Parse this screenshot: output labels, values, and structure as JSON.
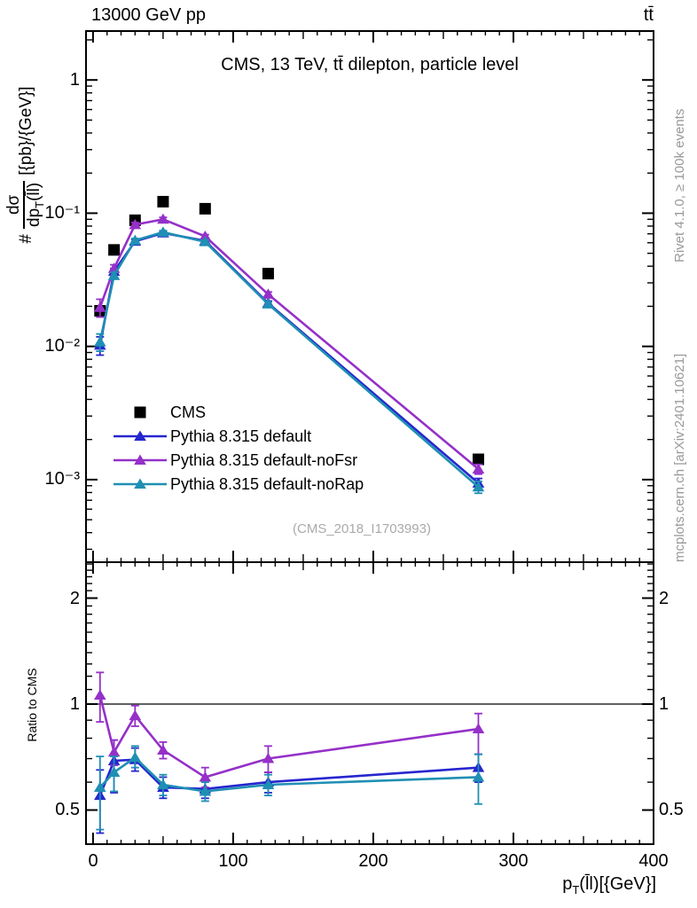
{
  "header": {
    "beam_label": "13000 GeV pp",
    "process_label": "tt̄"
  },
  "plot": {
    "title": "CMS, 13 TeV, tt̄ dilepton, particle level",
    "watermark": "(CMS_2018_I1703993)",
    "right_note_top": "Rivet 4.1.0, ≥ 100k events",
    "right_note_bottom": "mcplots.cern.ch [arXiv:2401.10621]"
  },
  "axes": {
    "x": {
      "tick_labels": [
        "0",
        "100",
        "200",
        "300",
        "400"
      ],
      "title_pre": "p",
      "title_sub": "T",
      "title_rest": "(l̄l)[{GeV}]"
    },
    "main_y": {
      "tick_labels": [
        "1",
        "10⁻¹",
        "10⁻²",
        "10⁻³"
      ],
      "title_prefix": "#",
      "title_frac_num": "dσ",
      "title_frac_den_pre": "dp",
      "title_frac_den_sub": "T",
      "title_frac_den_rest": "(l̄l)",
      "title_unit": "[{pb}/{GeV}]"
    },
    "ratio_y": {
      "title": "Ratio to CMS",
      "tick_labels": [
        "2",
        "1",
        "0.5"
      ]
    }
  },
  "chart_data": {
    "type": "line",
    "title": "CMS, 13 TeV, tt̄ dilepton, particle level",
    "xlabel": "p_T(ll̄) [GeV]",
    "ylabel_main": "# dσ/dp_T(ll̄) [pb/GeV]",
    "ylabel_ratio": "Ratio to CMS",
    "x_points": [
      5,
      15,
      30,
      50,
      80,
      125,
      275
    ],
    "x_axis": {
      "min": -5,
      "max": 400,
      "major_tick_step": 100,
      "mid_tick_step": 50,
      "minor_tick_step": 10
    },
    "main_y_axis": {
      "scale": "log",
      "min": 0.00024,
      "max": 2.33,
      "labeled_ticks": [
        1,
        0.1,
        0.01,
        0.001
      ]
    },
    "ratio_y_axis": {
      "scale": "log",
      "min": 0.4,
      "max": 2.53,
      "labeled_ticks": [
        2,
        1,
        0.5
      ],
      "reference_line": 1
    },
    "series": [
      {
        "name": "CMS",
        "color": "#000000",
        "marker": "square",
        "has_line": false,
        "values": [
          0.0185,
          0.053,
          0.0885,
          0.122,
          0.108,
          0.0352,
          0.00142
        ]
      },
      {
        "name": "Pythia 8.315 default",
        "color": "#2626cf",
        "marker": "triangle",
        "has_line": true,
        "values": [
          0.0102,
          0.0365,
          0.0615,
          0.071,
          0.062,
          0.0211,
          0.00094
        ],
        "errors": [
          0.0016,
          0.002,
          0.002,
          0.002,
          0.0018,
          0.0008,
          8e-05
        ],
        "ratio": [
          0.55,
          0.69,
          0.695,
          0.58,
          0.574,
          0.6,
          0.66
        ],
        "ratio_err_lo": [
          0.43,
          0.56,
          0.645,
          0.54,
          0.54,
          0.56,
          0.6
        ],
        "ratio_err_hi": [
          0.65,
          0.79,
          0.75,
          0.62,
          0.61,
          0.64,
          0.72
        ]
      },
      {
        "name": "Pythia 8.315 default-noFsr",
        "color": "#9530c8",
        "marker": "triangle",
        "has_line": true,
        "values": [
          0.0196,
          0.0385,
          0.082,
          0.09,
          0.067,
          0.0246,
          0.0012
        ],
        "errors": [
          0.003,
          0.0025,
          0.003,
          0.003,
          0.002,
          0.001,
          0.0001
        ],
        "ratio": [
          1.06,
          0.73,
          0.927,
          0.74,
          0.62,
          0.7,
          0.85
        ],
        "ratio_err_lo": [
          0.89,
          0.67,
          0.865,
          0.7,
          0.58,
          0.64,
          0.72
        ],
        "ratio_err_hi": [
          1.23,
          0.79,
          0.99,
          0.78,
          0.66,
          0.76,
          0.94
        ]
      },
      {
        "name": "Pythia 8.315 default-noRap",
        "color": "#1f8fb4",
        "marker": "triangle",
        "has_line": true,
        "values": [
          0.0108,
          0.034,
          0.0625,
          0.072,
          0.061,
          0.0208,
          0.00088
        ],
        "errors": [
          0.0016,
          0.002,
          0.002,
          0.002,
          0.0018,
          0.0008,
          9e-05
        ],
        "ratio": [
          0.58,
          0.64,
          0.705,
          0.59,
          0.565,
          0.59,
          0.62
        ],
        "ratio_err_lo": [
          0.44,
          0.565,
          0.66,
          0.55,
          0.53,
          0.55,
          0.52
        ],
        "ratio_err_hi": [
          0.71,
          0.71,
          0.76,
          0.63,
          0.6,
          0.63,
          0.72
        ]
      }
    ]
  }
}
